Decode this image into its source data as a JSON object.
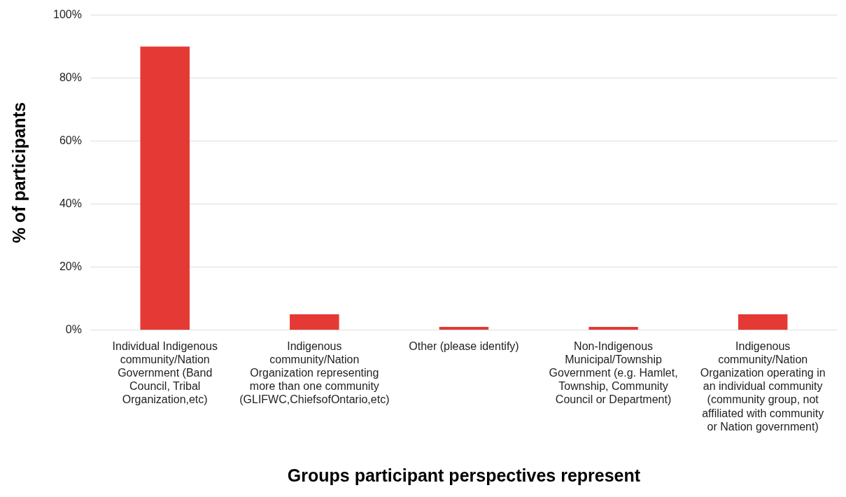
{
  "chart_data": {
    "type": "bar",
    "xlabel": "Groups participant perspectives represent",
    "ylabel": "% of participants",
    "categories": [
      "Individual Indigenous community/Nation Government (Band Council, Tribal Organization,etc)",
      "Indigenous community/Nation Organization representing more than one community (GLIFWC,ChiefsofOntario,etc)",
      "Other (please identify)",
      "Non-Indigenous Municipal/Township Government (e.g. Hamlet, Township, Community Council or Department)",
      "Indigenous community/Nation Organization operating in an individual community (community group, not affiliated with community or Nation government)"
    ],
    "values": [
      90,
      5,
      1,
      1,
      5
    ],
    "color": "#e53935",
    "ylim": [
      0,
      100
    ],
    "yticks": [
      {
        "value": 0,
        "label": "0%"
      },
      {
        "value": 20,
        "label": "20%"
      },
      {
        "value": 40,
        "label": "40%"
      },
      {
        "value": 60,
        "label": "60%"
      },
      {
        "value": 80,
        "label": "80%"
      },
      {
        "value": 100,
        "label": "100%"
      }
    ],
    "grid": "y",
    "legend": false
  }
}
